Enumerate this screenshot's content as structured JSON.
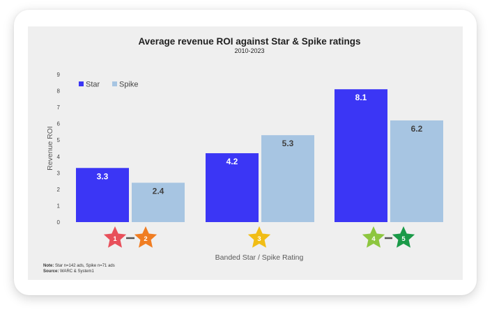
{
  "chart_data": {
    "type": "bar",
    "title": "Average revenue ROI against Star & Spike ratings",
    "subtitle": "2010-2023",
    "xlabel": "Banded Star / Spike Rating",
    "ylabel": "Revenue ROI",
    "ylim": [
      0,
      9
    ],
    "yticks": [
      "0",
      "1",
      "2",
      "3",
      "4",
      "5",
      "6",
      "7",
      "8",
      "9"
    ],
    "grid": false,
    "legend_position": "top-left",
    "categories": [
      "1-2",
      "3",
      "4-5"
    ],
    "series": [
      {
        "name": "Star",
        "color": "#3b36f5",
        "values": [
          3.3,
          4.2,
          8.1
        ],
        "labels": [
          "3.3",
          "4.2",
          "8.1"
        ]
      },
      {
        "name": "Spike",
        "color": "#a7c5e2",
        "values": [
          2.4,
          5.3,
          6.2
        ],
        "labels": [
          "2.4",
          "5.3",
          "6.2"
        ]
      }
    ],
    "star_ratings": [
      {
        "group": 0,
        "stars": [
          {
            "label": "1",
            "color": "#e8505b"
          },
          {
            "label": "2",
            "color": "#f07d22"
          }
        ]
      },
      {
        "group": 1,
        "stars": [
          {
            "label": "3",
            "color": "#f1bd15"
          }
        ]
      },
      {
        "group": 2,
        "stars": [
          {
            "label": "4",
            "color": "#8dc63f"
          },
          {
            "label": "5",
            "color": "#1a9a48"
          }
        ]
      }
    ],
    "note": {
      "label": "Note:",
      "text": " Star n=142 ads, Spike n=71 ads"
    },
    "source": {
      "label": "Source:",
      "text": " WARC & System1"
    }
  }
}
